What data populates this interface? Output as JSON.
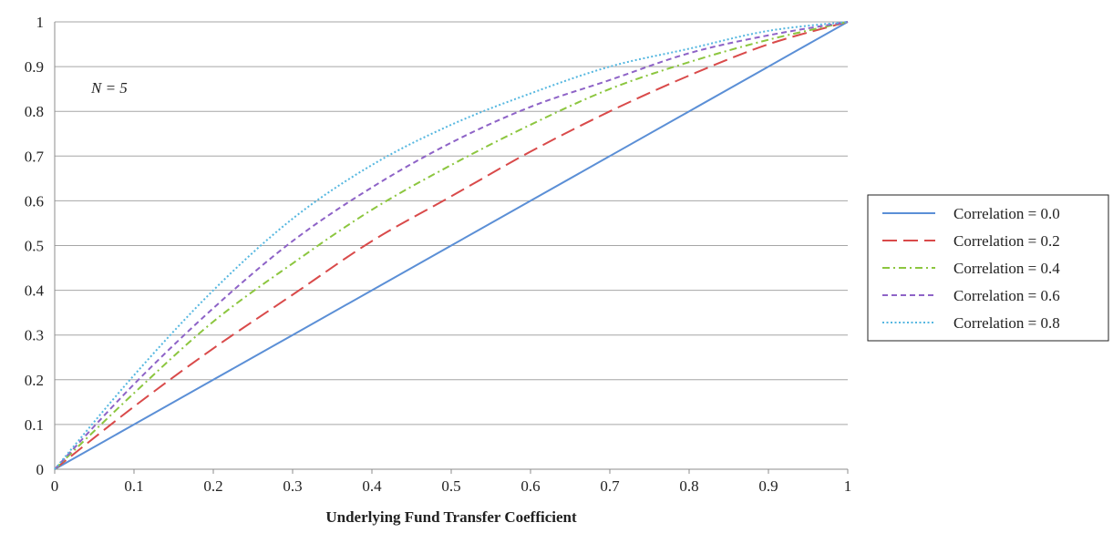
{
  "chart_data": {
    "type": "line",
    "title": "",
    "xlabel": "Underlying Fund Transfer Coefficient",
    "ylabel": "",
    "annotation": "N = 5",
    "xlim": [
      0,
      1
    ],
    "ylim": [
      0,
      1
    ],
    "x_ticks": [
      "0",
      "0.1",
      "0.2",
      "0.3",
      "0.4",
      "0.5",
      "0.6",
      "0.7",
      "0.8",
      "0.9",
      "1"
    ],
    "y_ticks": [
      "0",
      "0.1",
      "0.2",
      "0.3",
      "0.4",
      "0.5",
      "0.6",
      "0.7",
      "0.8",
      "0.9",
      "1"
    ],
    "grid": "horizontal",
    "legend_position": "right",
    "x": [
      0,
      0.1,
      0.2,
      0.3,
      0.4,
      0.5,
      0.6,
      0.7,
      0.8,
      0.9,
      1
    ],
    "series": [
      {
        "name": "Correlation = 0.0",
        "color": "#5b8fd6",
        "style": "solid",
        "values": [
          0,
          0.1,
          0.2,
          0.3,
          0.4,
          0.5,
          0.6,
          0.7,
          0.8,
          0.9,
          1
        ]
      },
      {
        "name": "Correlation = 0.2",
        "color": "#d94a4a",
        "style": "long-dash",
        "values": [
          0,
          0.14,
          0.27,
          0.39,
          0.51,
          0.61,
          0.71,
          0.8,
          0.88,
          0.95,
          1
        ]
      },
      {
        "name": "Correlation = 0.4",
        "color": "#8cc63f",
        "style": "dash-dot",
        "values": [
          0,
          0.17,
          0.33,
          0.46,
          0.58,
          0.68,
          0.77,
          0.85,
          0.91,
          0.96,
          1
        ]
      },
      {
        "name": "Correlation = 0.6",
        "color": "#8e63c7",
        "style": "short-dash",
        "values": [
          0,
          0.19,
          0.36,
          0.51,
          0.63,
          0.73,
          0.81,
          0.87,
          0.93,
          0.97,
          1
        ]
      },
      {
        "name": "Correlation = 0.8",
        "color": "#55b7e0",
        "style": "dotted",
        "values": [
          0,
          0.21,
          0.4,
          0.56,
          0.68,
          0.77,
          0.84,
          0.9,
          0.94,
          0.98,
          1
        ]
      }
    ]
  }
}
